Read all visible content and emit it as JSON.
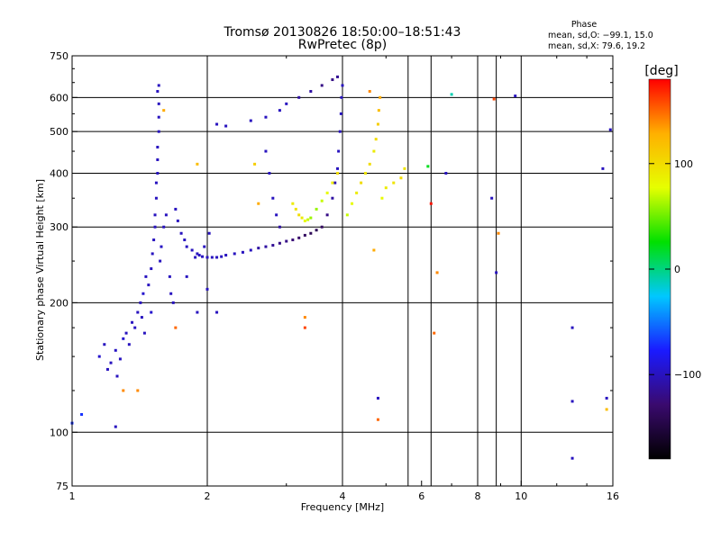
{
  "chart_data": {
    "type": "scatter",
    "title": "Tromsø 20130826 18:50:00–18:51:43",
    "subtitle": "RwPretec (8p)",
    "xlabel": "Frequency [MHz]",
    "ylabel": "Stationary phase Virtual Height [km]",
    "x_scale": "log",
    "y_scale": "log",
    "xlim": [
      1,
      16
    ],
    "ylim": [
      75,
      750
    ],
    "x_ticks": [
      1,
      2,
      4,
      6,
      8,
      10,
      16
    ],
    "x_tick_labels": [
      "1",
      "2",
      "4",
      "6",
      "8",
      "10",
      "16"
    ],
    "y_ticks": [
      75,
      100,
      200,
      300,
      400,
      500,
      600,
      750
    ],
    "y_tick_labels": [
      "75",
      "100",
      "200",
      "300",
      "400",
      "500",
      "600",
      "750"
    ],
    "grid": true,
    "grid_x": [
      2,
      4,
      5.6,
      6.3,
      8,
      8.8,
      10,
      16
    ],
    "grid_y": [
      100,
      200,
      300,
      400,
      500,
      600
    ],
    "colorbar": {
      "label": "[deg]",
      "range": [
        -180,
        180
      ],
      "ticks": [
        -100,
        0,
        100
      ],
      "tick_labels": [
        "−100",
        "0",
        "100"
      ],
      "stops": [
        "#000000",
        "#3a0a6e",
        "#1a1aff",
        "#00c8ff",
        "#00e000",
        "#e6ff00",
        "#ffb000",
        "#ff0000"
      ]
    },
    "phase_stats": {
      "heading": "Phase",
      "line_o": "mean, sd,O: −99.1, 15.0",
      "line_x": "mean, sd,X:  79.6, 19.2"
    },
    "series": [
      {
        "mode": "O",
        "points": [
          {
            "x": 1.0,
            "y": 105,
            "p": -70
          },
          {
            "x": 1.05,
            "y": 110,
            "p": -70
          },
          {
            "x": 1.25,
            "y": 103,
            "p": -100
          },
          {
            "x": 1.15,
            "y": 150,
            "p": -95
          },
          {
            "x": 1.18,
            "y": 160,
            "p": -100
          },
          {
            "x": 1.2,
            "y": 140,
            "p": -100
          },
          {
            "x": 1.22,
            "y": 145,
            "p": -100
          },
          {
            "x": 1.25,
            "y": 155,
            "p": -98
          },
          {
            "x": 1.26,
            "y": 135,
            "p": -100
          },
          {
            "x": 1.28,
            "y": 148,
            "p": -100
          },
          {
            "x": 1.3,
            "y": 165,
            "p": -95
          },
          {
            "x": 1.32,
            "y": 170,
            "p": -100
          },
          {
            "x": 1.34,
            "y": 160,
            "p": -100
          },
          {
            "x": 1.36,
            "y": 180,
            "p": -100
          },
          {
            "x": 1.38,
            "y": 175,
            "p": -98
          },
          {
            "x": 1.4,
            "y": 190,
            "p": -100
          },
          {
            "x": 1.42,
            "y": 200,
            "p": -100
          },
          {
            "x": 1.43,
            "y": 185,
            "p": -100
          },
          {
            "x": 1.44,
            "y": 210,
            "p": -95
          },
          {
            "x": 1.45,
            "y": 170,
            "p": -100
          },
          {
            "x": 1.46,
            "y": 230,
            "p": -100
          },
          {
            "x": 1.48,
            "y": 220,
            "p": -100
          },
          {
            "x": 1.5,
            "y": 240,
            "p": -100
          },
          {
            "x": 1.5,
            "y": 190,
            "p": -95
          },
          {
            "x": 1.51,
            "y": 260,
            "p": -100
          },
          {
            "x": 1.52,
            "y": 280,
            "p": -100
          },
          {
            "x": 1.53,
            "y": 300,
            "p": -100
          },
          {
            "x": 1.53,
            "y": 320,
            "p": -100
          },
          {
            "x": 1.54,
            "y": 350,
            "p": -100
          },
          {
            "x": 1.54,
            "y": 380,
            "p": -100
          },
          {
            "x": 1.55,
            "y": 400,
            "p": -100
          },
          {
            "x": 1.55,
            "y": 430,
            "p": -100
          },
          {
            "x": 1.55,
            "y": 460,
            "p": -100
          },
          {
            "x": 1.56,
            "y": 500,
            "p": -100
          },
          {
            "x": 1.56,
            "y": 540,
            "p": -100
          },
          {
            "x": 1.56,
            "y": 580,
            "p": -100
          },
          {
            "x": 1.56,
            "y": 640,
            "p": -100
          },
          {
            "x": 1.55,
            "y": 620,
            "p": -100
          },
          {
            "x": 1.57,
            "y": 250,
            "p": -100
          },
          {
            "x": 1.58,
            "y": 270,
            "p": -98
          },
          {
            "x": 1.6,
            "y": 300,
            "p": -100
          },
          {
            "x": 1.62,
            "y": 320,
            "p": -100
          },
          {
            "x": 1.65,
            "y": 230,
            "p": -100
          },
          {
            "x": 1.66,
            "y": 210,
            "p": -100
          },
          {
            "x": 1.68,
            "y": 200,
            "p": -100
          },
          {
            "x": 1.7,
            "y": 330,
            "p": -100
          },
          {
            "x": 1.72,
            "y": 310,
            "p": -100
          },
          {
            "x": 1.75,
            "y": 290,
            "p": -100
          },
          {
            "x": 1.78,
            "y": 280,
            "p": -100
          },
          {
            "x": 1.8,
            "y": 270,
            "p": -100
          },
          {
            "x": 1.8,
            "y": 230,
            "p": -100
          },
          {
            "x": 1.85,
            "y": 265,
            "p": -100
          },
          {
            "x": 1.88,
            "y": 255,
            "p": -100
          },
          {
            "x": 1.9,
            "y": 260,
            "p": -100
          },
          {
            "x": 1.9,
            "y": 190,
            "p": -100
          },
          {
            "x": 1.92,
            "y": 258,
            "p": -100
          },
          {
            "x": 1.95,
            "y": 256,
            "p": -100
          },
          {
            "x": 1.97,
            "y": 270,
            "p": -100
          },
          {
            "x": 2.0,
            "y": 255,
            "p": -100
          },
          {
            "x": 2.02,
            "y": 290,
            "p": -100
          },
          {
            "x": 2.05,
            "y": 255,
            "p": -100
          },
          {
            "x": 2.1,
            "y": 255,
            "p": -100
          },
          {
            "x": 2.15,
            "y": 256,
            "p": -100
          },
          {
            "x": 2.2,
            "y": 258,
            "p": -100
          },
          {
            "x": 2.3,
            "y": 260,
            "p": -100
          },
          {
            "x": 2.4,
            "y": 262,
            "p": -100
          },
          {
            "x": 2.5,
            "y": 265,
            "p": -100
          },
          {
            "x": 2.6,
            "y": 268,
            "p": -110
          },
          {
            "x": 2.7,
            "y": 270,
            "p": -110
          },
          {
            "x": 2.8,
            "y": 272,
            "p": -115
          },
          {
            "x": 2.9,
            "y": 275,
            "p": -120
          },
          {
            "x": 3.0,
            "y": 278,
            "p": -120
          },
          {
            "x": 3.1,
            "y": 280,
            "p": -125
          },
          {
            "x": 3.2,
            "y": 283,
            "p": -130
          },
          {
            "x": 3.3,
            "y": 287,
            "p": -135
          },
          {
            "x": 3.4,
            "y": 290,
            "p": -140
          },
          {
            "x": 3.5,
            "y": 295,
            "p": -140
          },
          {
            "x": 3.6,
            "y": 300,
            "p": -135
          },
          {
            "x": 3.7,
            "y": 320,
            "p": -120
          },
          {
            "x": 3.8,
            "y": 350,
            "p": -110
          },
          {
            "x": 3.85,
            "y": 380,
            "p": -105
          },
          {
            "x": 3.9,
            "y": 410,
            "p": -100
          },
          {
            "x": 3.92,
            "y": 450,
            "p": -100
          },
          {
            "x": 3.95,
            "y": 500,
            "p": -100
          },
          {
            "x": 3.97,
            "y": 550,
            "p": -100
          },
          {
            "x": 3.98,
            "y": 600,
            "p": -100
          },
          {
            "x": 4.0,
            "y": 640,
            "p": -100
          },
          {
            "x": 2.1,
            "y": 520,
            "p": -100
          },
          {
            "x": 2.2,
            "y": 515,
            "p": -100
          },
          {
            "x": 2.5,
            "y": 530,
            "p": -100
          },
          {
            "x": 2.7,
            "y": 540,
            "p": -100
          },
          {
            "x": 2.9,
            "y": 560,
            "p": -100
          },
          {
            "x": 3.0,
            "y": 580,
            "p": -100
          },
          {
            "x": 3.2,
            "y": 600,
            "p": -110
          },
          {
            "x": 3.4,
            "y": 620,
            "p": -110
          },
          {
            "x": 3.6,
            "y": 640,
            "p": -120
          },
          {
            "x": 3.8,
            "y": 660,
            "p": -120
          },
          {
            "x": 3.9,
            "y": 670,
            "p": -115
          },
          {
            "x": 2.7,
            "y": 450,
            "p": -100
          },
          {
            "x": 2.75,
            "y": 400,
            "p": -100
          },
          {
            "x": 2.8,
            "y": 350,
            "p": -100
          },
          {
            "x": 2.85,
            "y": 320,
            "p": -100
          },
          {
            "x": 2.9,
            "y": 300,
            "p": -110
          },
          {
            "x": 2.0,
            "y": 215,
            "p": -100
          },
          {
            "x": 2.1,
            "y": 190,
            "p": -100
          },
          {
            "x": 13,
            "y": 175,
            "p": -100
          },
          {
            "x": 13,
            "y": 118,
            "p": -100
          },
          {
            "x": 13,
            "y": 87,
            "p": -100
          },
          {
            "x": 15.2,
            "y": 410,
            "p": -100
          },
          {
            "x": 15.8,
            "y": 505,
            "p": -100
          },
          {
            "x": 15.5,
            "y": 120,
            "p": -100
          },
          {
            "x": 8.6,
            "y": 350,
            "p": -100
          },
          {
            "x": 8.8,
            "y": 235,
            "p": -100
          },
          {
            "x": 9.7,
            "y": 605,
            "p": -100
          },
          {
            "x": 6.8,
            "y": 400,
            "p": -100
          },
          {
            "x": 4.8,
            "y": 120,
            "p": -100
          }
        ]
      },
      {
        "mode": "X",
        "points": [
          {
            "x": 3.1,
            "y": 340,
            "p": 90
          },
          {
            "x": 3.15,
            "y": 330,
            "p": 95
          },
          {
            "x": 3.2,
            "y": 320,
            "p": 100
          },
          {
            "x": 3.25,
            "y": 315,
            "p": 90
          },
          {
            "x": 3.3,
            "y": 310,
            "p": 80
          },
          {
            "x": 3.35,
            "y": 312,
            "p": 70
          },
          {
            "x": 3.4,
            "y": 315,
            "p": 60
          },
          {
            "x": 3.5,
            "y": 330,
            "p": 60
          },
          {
            "x": 3.6,
            "y": 345,
            "p": 70
          },
          {
            "x": 3.7,
            "y": 360,
            "p": 80
          },
          {
            "x": 3.8,
            "y": 380,
            "p": 90
          },
          {
            "x": 3.9,
            "y": 400,
            "p": 100
          },
          {
            "x": 4.1,
            "y": 320,
            "p": 70
          },
          {
            "x": 4.2,
            "y": 340,
            "p": 80
          },
          {
            "x": 4.3,
            "y": 360,
            "p": 90
          },
          {
            "x": 4.4,
            "y": 380,
            "p": 100
          },
          {
            "x": 4.5,
            "y": 400,
            "p": 95
          },
          {
            "x": 4.6,
            "y": 420,
            "p": 100
          },
          {
            "x": 4.7,
            "y": 450,
            "p": 90
          },
          {
            "x": 4.75,
            "y": 480,
            "p": 100
          },
          {
            "x": 4.8,
            "y": 520,
            "p": 110
          },
          {
            "x": 4.82,
            "y": 560,
            "p": 120
          },
          {
            "x": 4.85,
            "y": 600,
            "p": 130
          },
          {
            "x": 4.9,
            "y": 350,
            "p": 80
          },
          {
            "x": 5.0,
            "y": 370,
            "p": 90
          },
          {
            "x": 5.2,
            "y": 380,
            "p": 95
          },
          {
            "x": 5.4,
            "y": 390,
            "p": 100
          },
          {
            "x": 5.5,
            "y": 410,
            "p": 95
          },
          {
            "x": 4.6,
            "y": 620,
            "p": 140
          },
          {
            "x": 4.7,
            "y": 265,
            "p": 130
          },
          {
            "x": 1.6,
            "y": 560,
            "p": 130
          },
          {
            "x": 1.9,
            "y": 420,
            "p": 120
          },
          {
            "x": 2.55,
            "y": 420,
            "p": 110
          },
          {
            "x": 2.6,
            "y": 340,
            "p": 130
          },
          {
            "x": 1.3,
            "y": 125,
            "p": 140
          },
          {
            "x": 1.4,
            "y": 125,
            "p": 140
          },
          {
            "x": 1.7,
            "y": 175,
            "p": 150
          },
          {
            "x": 3.3,
            "y": 185,
            "p": 140
          },
          {
            "x": 3.3,
            "y": 175,
            "p": 160
          },
          {
            "x": 4.8,
            "y": 107,
            "p": 150
          },
          {
            "x": 6.4,
            "y": 170,
            "p": 150
          },
          {
            "x": 6.5,
            "y": 235,
            "p": 140
          },
          {
            "x": 6.3,
            "y": 340,
            "p": 175
          },
          {
            "x": 8.7,
            "y": 595,
            "p": 160
          },
          {
            "x": 8.9,
            "y": 290,
            "p": 140
          },
          {
            "x": 15.5,
            "y": 113,
            "p": 120
          },
          {
            "x": 6.2,
            "y": 415,
            "p": 20
          },
          {
            "x": 7.0,
            "y": 610,
            "p": -10
          }
        ]
      }
    ]
  }
}
